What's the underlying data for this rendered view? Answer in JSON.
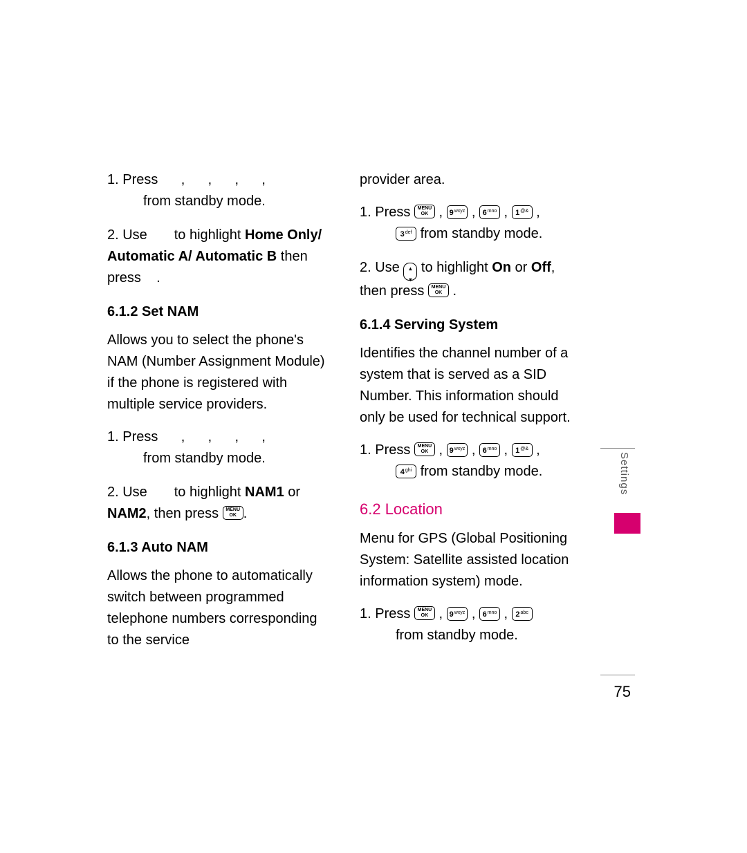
{
  "left": {
    "step1_prefix": "1. Press",
    "step1_suffix": "from standby mode.",
    "step2_a": "2. Use",
    "step2_b": "to highlight ",
    "step2_bold": "Home Only/ Automatic A/ Automatic B",
    "step2_c": " then press",
    "h612": "6.1.2 Set NAM",
    "desc612": "Allows you to select the phone's NAM (Number Assignment Module) if the phone is registered with multiple service providers.",
    "s612_1_prefix": "1. Press",
    "s612_1_suffix": "from standby mode.",
    "s612_2_a": "2. Use",
    "s612_2_b": "to highlight ",
    "s612_2_bold1": "NAM1",
    "s612_2_or": " or ",
    "s612_2_bold2": "NAM2",
    "s612_2_c": ", then press ",
    "h613": "6.1.3 Auto NAM",
    "desc613": "Allows the phone to automatically switch between programmed telephone numbers corresponding to the service"
  },
  "right": {
    "cont": "provider area.",
    "s613_1_a": "1. Press ",
    "s613_1_b": " from standby mode.",
    "s613_2_a": "2. Use ",
    "s613_2_b": " to highlight ",
    "s613_2_on": "On",
    "s613_2_or": " or ",
    "s613_2_off": "Off",
    "s613_2_c": ", then press ",
    "h614": "6.1.4 Serving System",
    "desc614": "Identifies the channel number of a system that is served as a SID Number. This information should only be used for technical support.",
    "s614_1_a": "1. Press ",
    "s614_1_b": " from standby mode.",
    "h62": "6.2 Location",
    "desc62": "Menu for GPS (Global Positioning System: Satellite assisted location information system) mode.",
    "s62_1_a": "1. Press ",
    "s62_1_b": "from standby mode."
  },
  "keys": {
    "menu_top": "MENU",
    "menu_bot": "OK",
    "k9": "9",
    "k9sub": "wxyz",
    "k6": "6",
    "k6sub": "mno",
    "k1": "1",
    "k1sub": "@&",
    "k3": "3",
    "k3sub": "def",
    "k4": "4",
    "k4sub": "ghi",
    "k2": "2",
    "k2sub": "abc",
    "nav_up": "▴",
    "nav_down": "▾"
  },
  "side": {
    "label": "Settings",
    "pagenum": "75"
  },
  "colors": {
    "accent": "#d6006e",
    "text": "#000000"
  }
}
